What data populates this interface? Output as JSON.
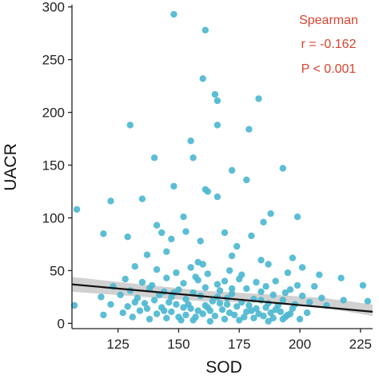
{
  "chart_data": {
    "type": "scatter",
    "xlabel": "SOD",
    "ylabel": "UACR",
    "xlim": [
      106,
      230
    ],
    "ylim": [
      -5,
      302
    ],
    "x_ticks": [
      125,
      150,
      175,
      200,
      225
    ],
    "y_ticks": [
      0,
      50,
      100,
      150,
      200,
      250,
      300
    ],
    "x_tick_labels": [
      "125",
      "150",
      "175",
      "200",
      "225"
    ],
    "y_tick_labels": [
      "0",
      "50",
      "100",
      "150",
      "200",
      "250",
      "300"
    ],
    "grid": false,
    "points": [
      [
        148,
        293
      ],
      [
        161,
        278
      ],
      [
        160,
        232
      ],
      [
        165,
        217
      ],
      [
        166,
        211
      ],
      [
        183,
        213
      ],
      [
        130,
        188
      ],
      [
        166,
        188
      ],
      [
        179,
        184
      ],
      [
        155,
        173
      ],
      [
        156,
        157
      ],
      [
        140,
        157
      ],
      [
        172,
        145
      ],
      [
        161,
        127
      ],
      [
        193,
        147
      ],
      [
        178,
        136
      ],
      [
        162,
        125
      ],
      [
        166,
        120
      ],
      [
        135,
        118
      ],
      [
        122,
        116
      ],
      [
        148,
        130
      ],
      [
        152,
        101
      ],
      [
        199,
        101
      ],
      [
        108,
        108
      ],
      [
        188,
        104
      ],
      [
        185,
        96
      ],
      [
        141,
        93
      ],
      [
        119,
        85
      ],
      [
        129,
        82
      ],
      [
        143,
        86
      ],
      [
        153,
        87
      ],
      [
        169,
        86
      ],
      [
        180,
        83
      ],
      [
        159,
        78
      ],
      [
        174,
        73
      ],
      [
        147,
        80
      ],
      [
        172,
        64
      ],
      [
        137,
        65
      ],
      [
        145,
        68
      ],
      [
        158,
        58
      ],
      [
        184,
        60
      ],
      [
        197,
        62
      ],
      [
        201,
        53
      ],
      [
        160,
        56
      ],
      [
        155,
        53
      ],
      [
        187,
        56
      ],
      [
        132,
        54
      ],
      [
        141,
        51
      ],
      [
        149,
        48
      ],
      [
        162,
        47
      ],
      [
        171,
        50
      ],
      [
        195,
        48
      ],
      [
        208,
        46
      ],
      [
        217,
        43
      ],
      [
        226,
        36
      ],
      [
        128,
        42
      ],
      [
        135,
        39
      ],
      [
        145,
        43
      ],
      [
        152,
        38
      ],
      [
        158,
        41
      ],
      [
        166,
        37
      ],
      [
        175,
        42
      ],
      [
        182,
        39
      ],
      [
        190,
        40
      ],
      [
        199,
        36
      ],
      [
        206,
        35
      ],
      [
        123,
        35
      ],
      [
        130,
        31
      ],
      [
        138,
        33
      ],
      [
        144,
        30
      ],
      [
        150,
        32
      ],
      [
        156,
        29
      ],
      [
        161,
        34
      ],
      [
        167,
        31
      ],
      [
        172,
        28
      ],
      [
        178,
        33
      ],
      [
        184,
        30
      ],
      [
        189,
        27
      ],
      [
        194,
        29
      ],
      [
        201,
        26
      ],
      [
        209,
        24
      ],
      [
        218,
        22
      ],
      [
        228,
        21
      ],
      [
        118,
        25
      ],
      [
        126,
        27
      ],
      [
        133,
        24
      ],
      [
        140,
        22
      ],
      [
        147,
        25
      ],
      [
        153,
        23
      ],
      [
        159,
        26
      ],
      [
        164,
        21
      ],
      [
        170,
        24
      ],
      [
        176,
        20
      ],
      [
        181,
        23
      ],
      [
        187,
        19
      ],
      [
        193,
        22
      ],
      [
        198,
        18
      ],
      [
        204,
        20
      ],
      [
        211,
        17
      ],
      [
        122,
        18
      ],
      [
        129,
        16
      ],
      [
        136,
        19
      ],
      [
        143,
        15
      ],
      [
        149,
        18
      ],
      [
        155,
        14
      ],
      [
        161,
        17
      ],
      [
        168,
        13
      ],
      [
        174,
        16
      ],
      [
        180,
        12
      ],
      [
        186,
        15
      ],
      [
        192,
        11
      ],
      [
        197,
        14
      ],
      [
        203,
        10
      ],
      [
        127,
        10
      ],
      [
        134,
        12
      ],
      [
        141,
        9
      ],
      [
        147,
        11
      ],
      [
        153,
        8
      ],
      [
        158,
        12
      ],
      [
        165,
        7
      ],
      [
        171,
        10
      ],
      [
        177,
        6
      ],
      [
        183,
        9
      ],
      [
        189,
        5
      ],
      [
        195,
        8
      ],
      [
        200,
        4
      ],
      [
        107,
        17
      ],
      [
        119,
        8
      ],
      [
        131,
        6
      ],
      [
        138,
        4
      ],
      [
        145,
        5
      ],
      [
        151,
        3
      ],
      [
        157,
        6
      ],
      [
        163,
        2
      ],
      [
        169,
        4
      ],
      [
        175,
        3
      ],
      [
        181,
        5
      ],
      [
        187,
        2
      ],
      [
        193,
        4
      ],
      [
        137,
        14
      ],
      [
        146,
        20
      ],
      [
        152,
        15
      ],
      [
        163,
        12
      ],
      [
        167,
        19
      ],
      [
        173,
        8
      ],
      [
        179,
        17
      ],
      [
        185,
        7
      ],
      [
        190,
        13
      ],
      [
        196,
        9
      ],
      [
        142,
        27
      ],
      [
        148,
        29
      ],
      [
        154,
        18
      ],
      [
        160,
        9
      ],
      [
        166,
        25
      ],
      [
        172,
        33
      ],
      [
        178,
        11
      ],
      [
        184,
        22
      ],
      [
        191,
        17
      ],
      [
        139,
        36
      ],
      [
        157,
        44
      ],
      [
        169,
        40
      ],
      [
        176,
        46
      ],
      [
        186,
        35
      ],
      [
        196,
        32
      ],
      [
        132,
        20
      ],
      [
        144,
        12
      ],
      [
        150,
        6
      ],
      [
        156,
        3
      ],
      [
        162,
        15
      ],
      [
        170,
        18
      ],
      [
        182,
        14
      ],
      [
        188,
        10
      ],
      [
        194,
        6
      ]
    ],
    "trend_line": {
      "x": [
        106,
        230
      ],
      "y": [
        37,
        11
      ]
    },
    "confidence_band": {
      "x": [
        106,
        130,
        160,
        175,
        190,
        210,
        230
      ],
      "lower": [
        30,
        26,
        21,
        20,
        19,
        15,
        7
      ],
      "upper": [
        44,
        38,
        31,
        29,
        27,
        24,
        18
      ]
    },
    "annotation": {
      "lines": [
        "Spearman",
        "r = -0.162",
        "P < 0.001"
      ],
      "position": "top-right"
    }
  },
  "colors": {
    "points": "#4db8d0",
    "trend_line": "#111111",
    "band": "#c2c2c2",
    "annotation": "#d9432f",
    "axis": "#222222"
  }
}
